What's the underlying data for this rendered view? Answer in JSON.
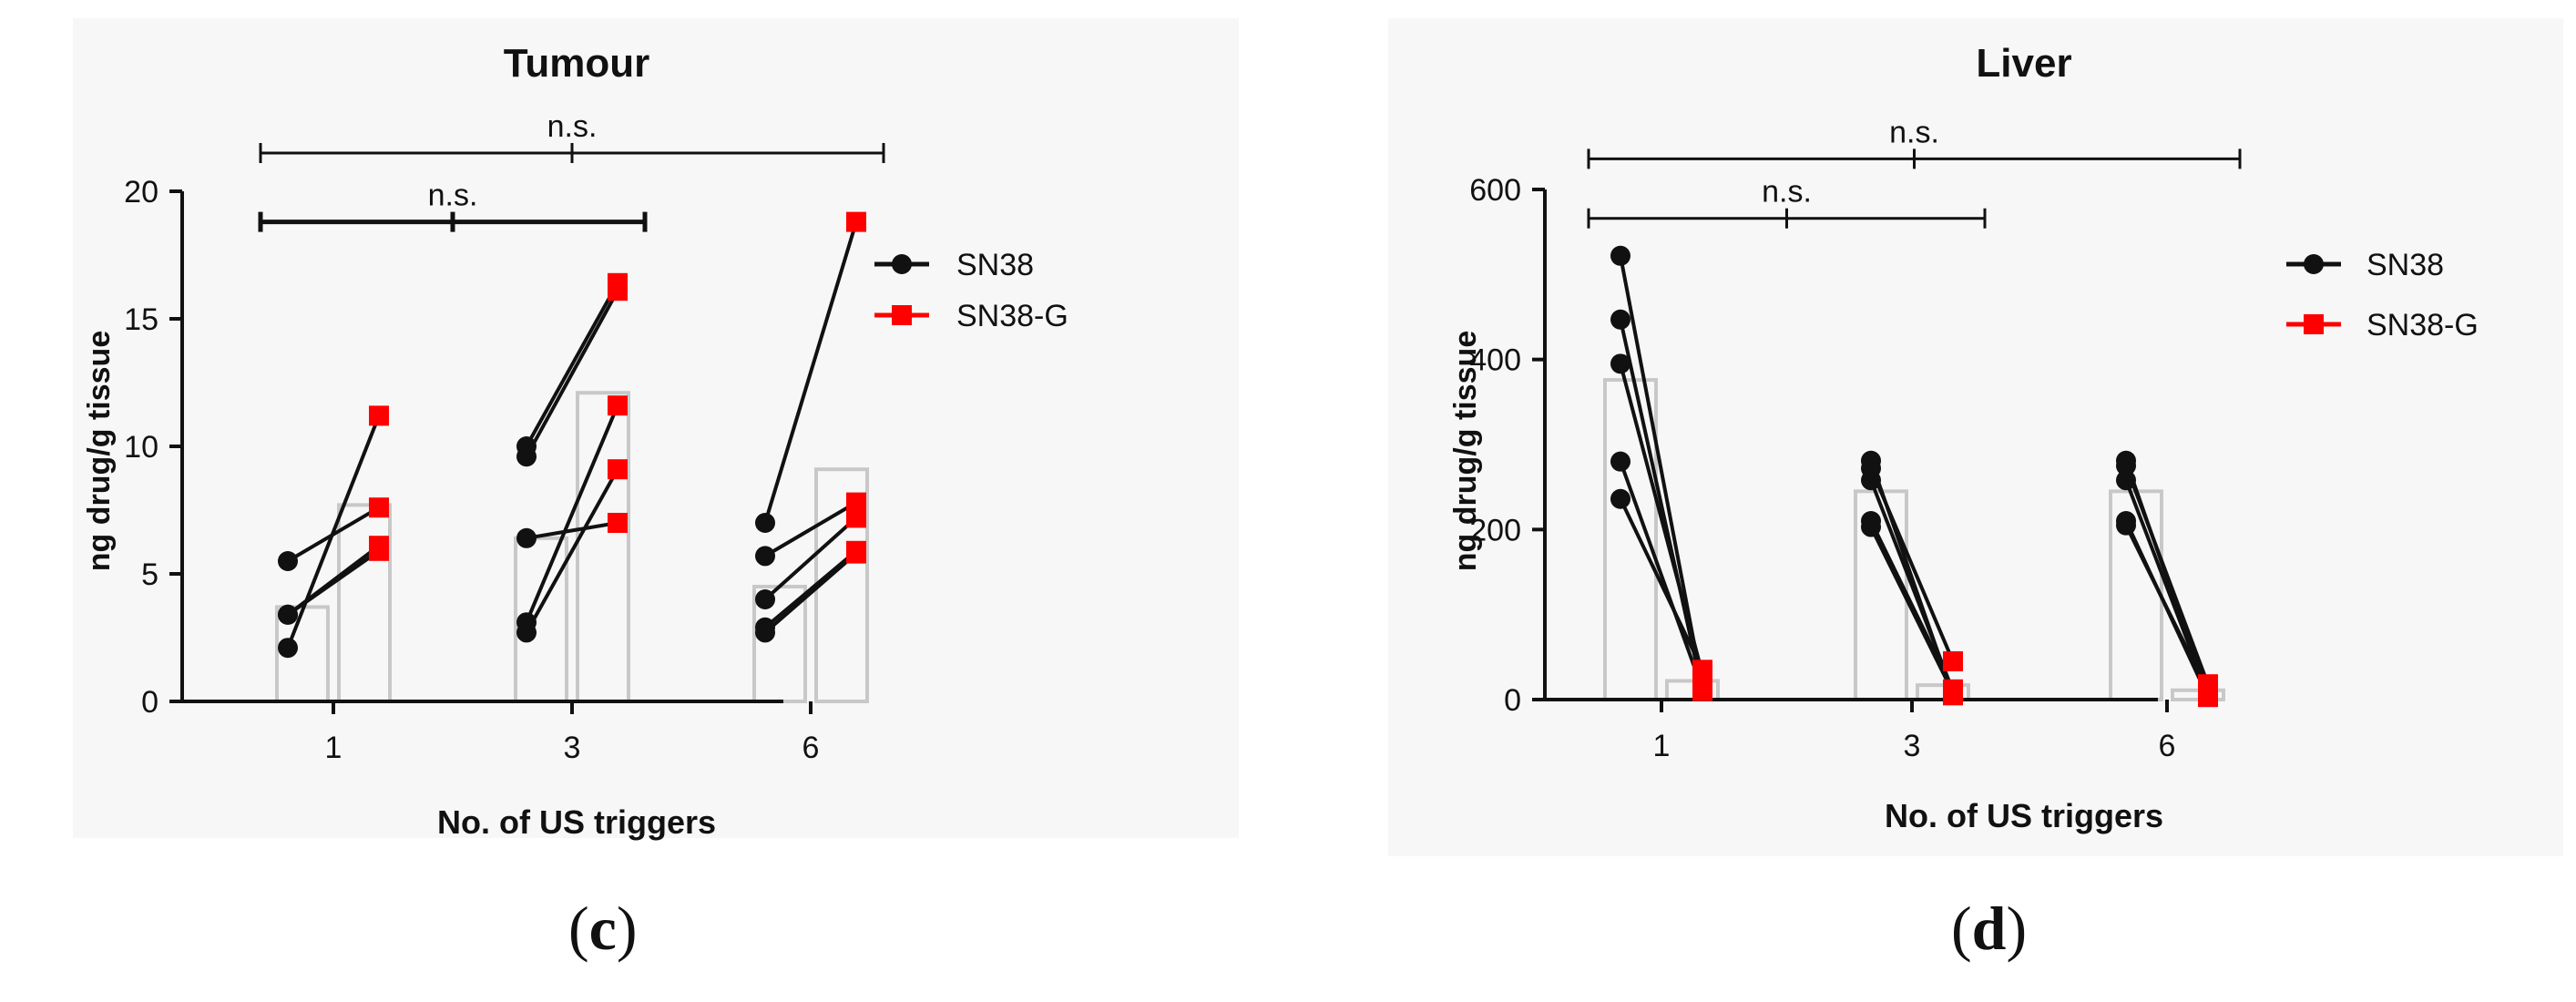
{
  "colors": {
    "sn38": "#111111",
    "sn38g": "#ff0000",
    "bar_edge": "#c8c8c8",
    "panel_bg": "#f7f7f7",
    "axis": "#111111"
  },
  "panels": {
    "c": {
      "label_open": "(",
      "label_letter": "c",
      "label_close": ")"
    },
    "d": {
      "label_open": "(",
      "label_letter": "d",
      "label_close": ")"
    }
  },
  "chart_data": [
    {
      "id": "c",
      "type": "bar",
      "title": "Tumour",
      "xlabel": "No. of US triggers",
      "ylabel": "ng drug/g tissue",
      "ylim": [
        0,
        20
      ],
      "yticks": [
        0,
        5,
        10,
        15,
        20
      ],
      "categories": [
        "1",
        "3",
        "6"
      ],
      "legend": {
        "position": "right",
        "items": [
          "SN38",
          "SN38-G"
        ]
      },
      "series": [
        {
          "name": "SN38",
          "values": [
            3.7,
            6.4,
            4.5
          ]
        },
        {
          "name": "SN38-G",
          "values": [
            7.7,
            12.1,
            9.1
          ]
        }
      ],
      "paired_points": [
        {
          "category": "1",
          "pairs": [
            [
              5.5,
              7.6
            ],
            [
              3.4,
              6.1
            ],
            [
              3.4,
              5.9
            ],
            [
              2.1,
              11.2
            ]
          ]
        },
        {
          "category": "3",
          "pairs": [
            [
              10.0,
              16.4
            ],
            [
              9.6,
              16.1
            ],
            [
              6.4,
              7.0
            ],
            [
              3.1,
              11.6
            ],
            [
              2.7,
              9.1
            ]
          ]
        },
        {
          "category": "6",
          "pairs": [
            [
              7.0,
              18.8
            ],
            [
              5.7,
              7.8
            ],
            [
              4.0,
              7.2
            ],
            [
              2.9,
              5.9
            ],
            [
              2.7,
              5.8
            ]
          ]
        }
      ],
      "annotations": [
        {
          "text": "n.s.",
          "from": "1",
          "to": "3",
          "level": 18.8,
          "bold_line": true
        },
        {
          "text": "n.s.",
          "from": "1",
          "to": "6",
          "level": 21.5,
          "bold_line": false
        }
      ]
    },
    {
      "id": "d",
      "type": "bar",
      "title": "Liver",
      "xlabel": "No. of US triggers",
      "ylabel": "ng drug/g tissue",
      "ylim": [
        0,
        600
      ],
      "yticks": [
        0,
        200,
        400,
        600
      ],
      "categories": [
        "1",
        "3",
        "6"
      ],
      "legend": {
        "position": "right",
        "items": [
          "SN38",
          "SN38-G"
        ]
      },
      "series": [
        {
          "name": "SN38",
          "values": [
            376,
            245,
            245
          ]
        },
        {
          "name": "SN38-G",
          "values": [
            22,
            17,
            11
          ]
        }
      ],
      "paired_points": [
        {
          "category": "1",
          "pairs": [
            [
              522,
              15
            ],
            [
              447,
              10
            ],
            [
              395,
              30
            ],
            [
              280,
              12
            ],
            [
              236,
              35
            ]
          ]
        },
        {
          "category": "3",
          "pairs": [
            [
              281,
              5
            ],
            [
              272,
              45
            ],
            [
              258,
              10
            ],
            [
              210,
              12
            ],
            [
              203,
              8
            ]
          ]
        },
        {
          "category": "6",
          "pairs": [
            [
              281,
              5
            ],
            [
              275,
              18
            ],
            [
              258,
              6
            ],
            [
              210,
              3
            ],
            [
              205,
              10
            ]
          ]
        }
      ],
      "annotations": [
        {
          "text": "n.s.",
          "from": "1",
          "to": "3",
          "level": 566,
          "bold_line": false
        },
        {
          "text": "n.s.",
          "from": "1",
          "to": "6",
          "level": 636,
          "bold_line": false
        }
      ]
    }
  ]
}
